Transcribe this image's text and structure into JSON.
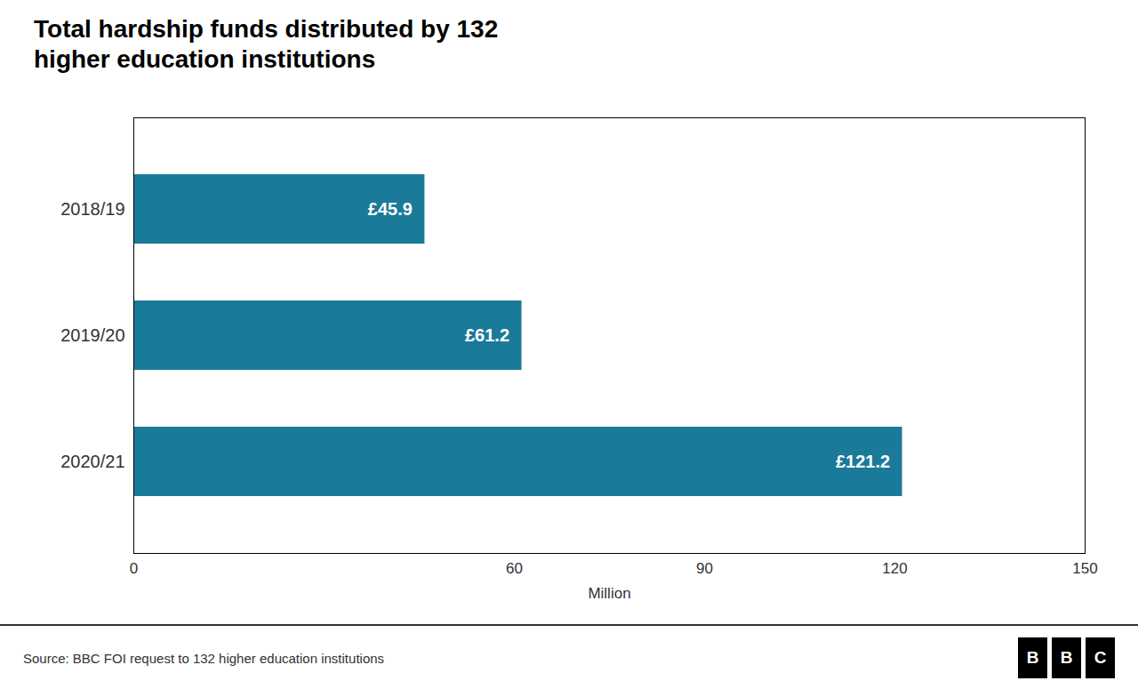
{
  "chart_data": {
    "type": "bar",
    "orientation": "horizontal",
    "title": "Total hardship funds distributed by 132\nhigher education institutions",
    "categories": [
      "2018/19",
      "2019/20",
      "2020/21"
    ],
    "values": [
      45.9,
      61.2,
      121.2
    ],
    "value_labels": [
      "£45.9",
      "£61.2",
      "£121.2"
    ],
    "data_labels": true,
    "color": "#1a7a9a",
    "xlim": [
      0,
      150
    ],
    "xticks": [
      0,
      60,
      90,
      120,
      150
    ],
    "xlabel": "Million",
    "grid": false,
    "source": "Source: BBC FOI request to 132 higher education institutions",
    "logo": "BBC"
  }
}
